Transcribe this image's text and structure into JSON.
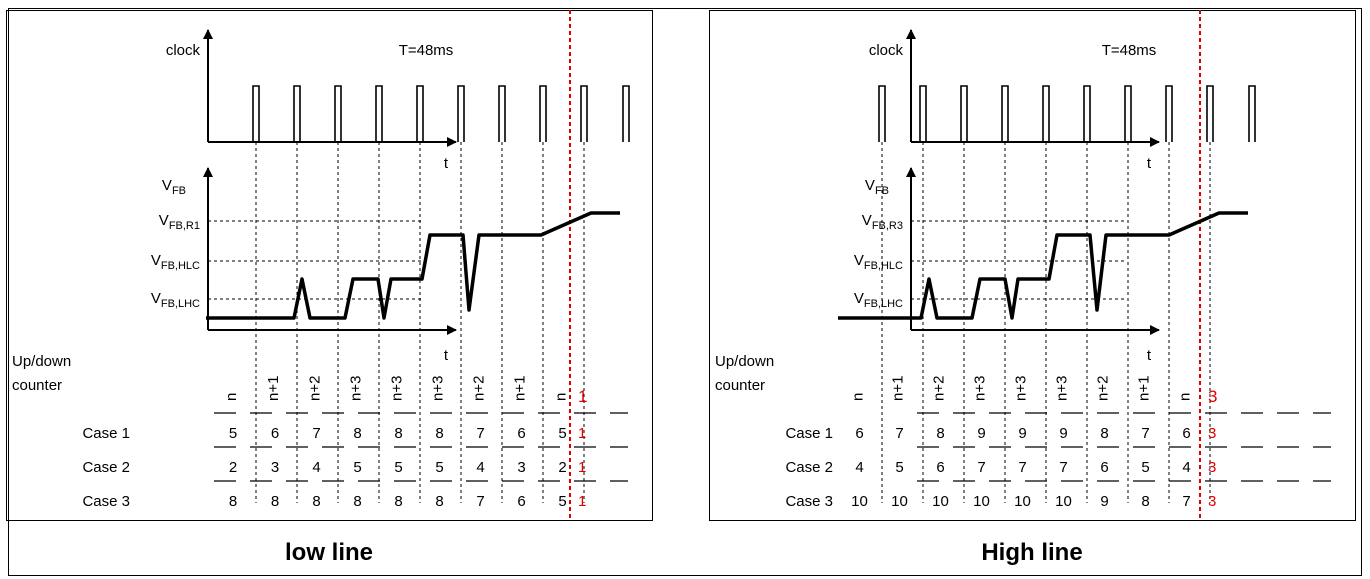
{
  "panels": [
    {
      "id": "low",
      "caption": "low line",
      "period_label": "T=48ms",
      "clock_label": "clock",
      "time_label": "t",
      "vfb_label": {
        "main": "V",
        "sub": "FB"
      },
      "level_labels": [
        {
          "main": "V",
          "sub": "FB,R1"
        },
        {
          "main": "V",
          "sub": "FB,HLC"
        },
        {
          "main": "V",
          "sub": "FB,LHC"
        }
      ],
      "counter_label": [
        "Up/down",
        "counter"
      ],
      "counter_values": [
        "n",
        "n+1",
        "n+2",
        "n+3",
        "n+3",
        "n+3",
        "n+2",
        "n+1",
        "n"
      ],
      "counter_final": "1",
      "cases": [
        {
          "label": "Case 1",
          "values": [
            "5",
            "6",
            "7",
            "8",
            "8",
            "8",
            "7",
            "6",
            "5"
          ],
          "final": "1"
        },
        {
          "label": "Case 2",
          "values": [
            "2",
            "3",
            "4",
            "5",
            "5",
            "5",
            "4",
            "3",
            "2"
          ],
          "final": "1"
        },
        {
          "label": "Case 3",
          "values": [
            "8",
            "8",
            "8",
            "8",
            "8",
            "8",
            "7",
            "6",
            "5"
          ],
          "final": "1"
        }
      ]
    },
    {
      "id": "high",
      "caption": "High line",
      "period_label": "T=48ms",
      "clock_label": "clock",
      "time_label": "t",
      "vfb_label": {
        "main": "V",
        "sub": "FB"
      },
      "level_labels": [
        {
          "main": "V",
          "sub": "FB,R3"
        },
        {
          "main": "V",
          "sub": "FB,HLC"
        },
        {
          "main": "V",
          "sub": "FB,LHC"
        }
      ],
      "counter_label": [
        "Up/down",
        "counter"
      ],
      "counter_values": [
        "n",
        "n+1",
        "n+2",
        "n+3",
        "n+3",
        "n+3",
        "n+2",
        "n+1",
        "n"
      ],
      "counter_final": "3",
      "cases": [
        {
          "label": "Case 1",
          "values": [
            "6",
            "7",
            "8",
            "9",
            "9",
            "9",
            "8",
            "7",
            "6"
          ],
          "final": "3"
        },
        {
          "label": "Case 2",
          "values": [
            "4",
            "5",
            "6",
            "7",
            "7",
            "7",
            "6",
            "5",
            "4"
          ],
          "final": "3"
        },
        {
          "label": "Case 3",
          "values": [
            "10",
            "10",
            "10",
            "10",
            "10",
            "10",
            "9",
            "8",
            "7"
          ],
          "final": "3"
        }
      ]
    }
  ],
  "colors": {
    "line": "#000000",
    "highlight": "#e00000"
  }
}
